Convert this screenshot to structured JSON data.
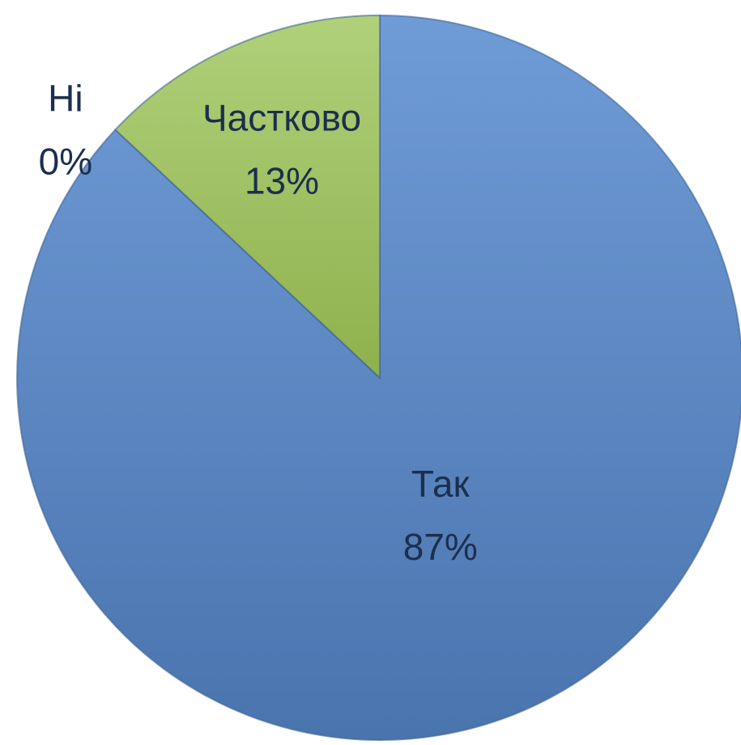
{
  "chart_data": {
    "type": "pie",
    "categories": [
      "Так",
      "Ні",
      "Частково"
    ],
    "values": [
      87,
      0,
      13
    ],
    "value_labels": [
      "87%",
      "0%",
      "13%"
    ],
    "colors": [
      "#5f8bc8",
      "#c0504d",
      "#a4c466"
    ]
  }
}
